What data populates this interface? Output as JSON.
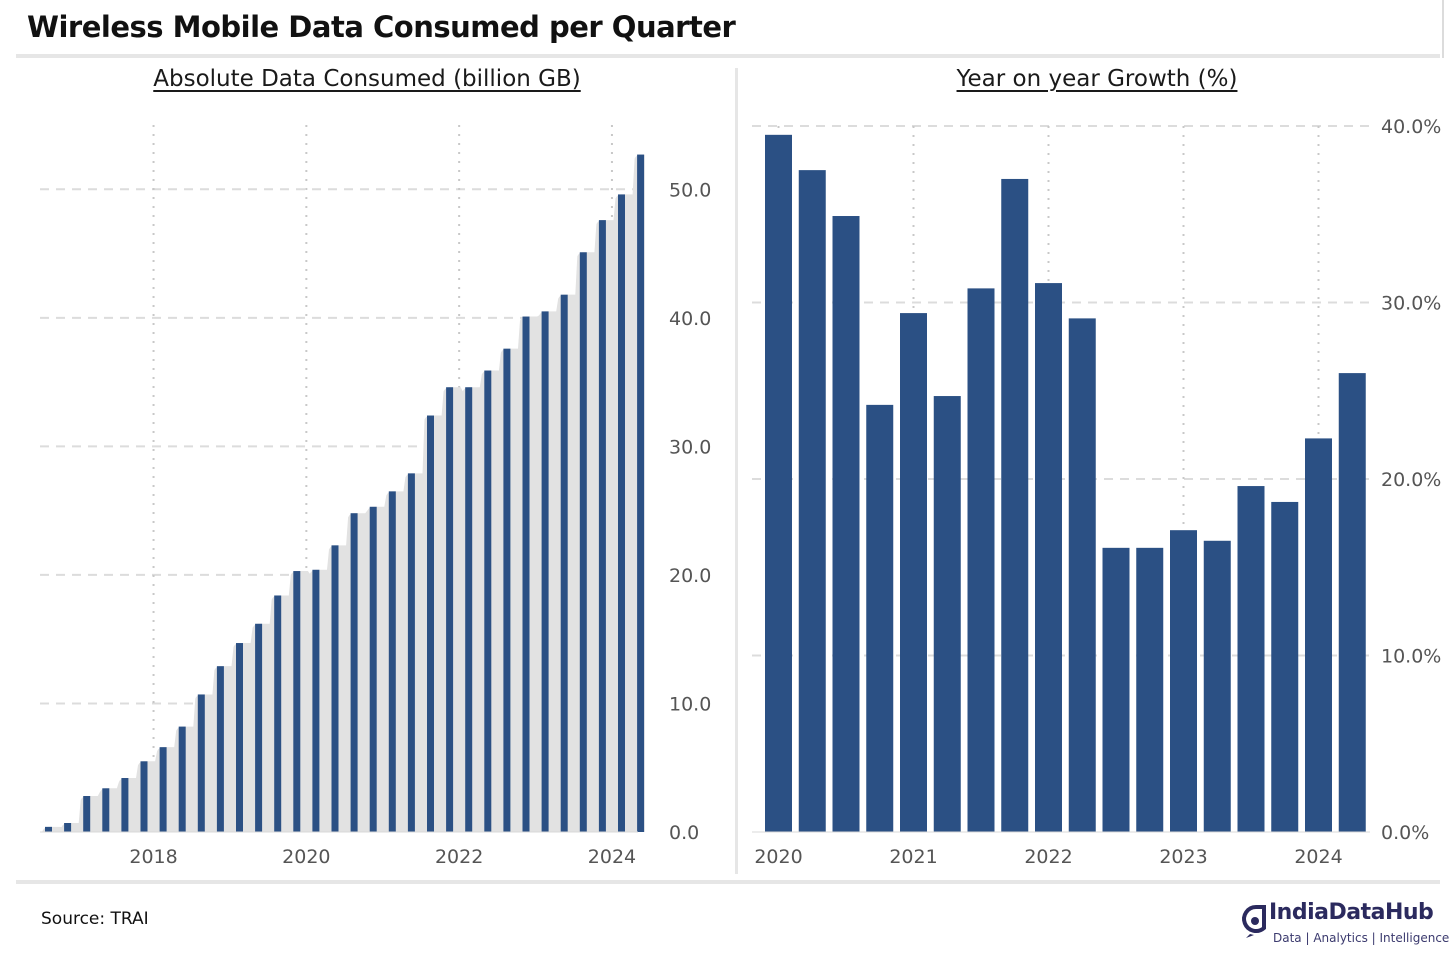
{
  "title": "Wireless Mobile Data Consumed per Quarter",
  "source": "Source: TRAI",
  "logo": {
    "name": "IndiaDataHub",
    "tagline": "Data | Analytics | Intelligence"
  },
  "colors": {
    "bar": "#2b5084",
    "area": "#e2e2e2",
    "grid": "#dcdcdc",
    "frame": "#e6e6e6",
    "logo": "#2b2a5e"
  },
  "chart_data": [
    {
      "type": "bar",
      "title": "Absolute Data Consumed (billion GB)",
      "y_axis_position": "right",
      "ylim": [
        0,
        55
      ],
      "yticks": [
        0,
        10,
        20,
        30,
        40,
        50
      ],
      "ytick_labels": [
        "0.0",
        "10.0",
        "20.0",
        "30.0",
        "40.0",
        "50.0"
      ],
      "xticks": [
        "2018",
        "2020",
        "2022",
        "2024"
      ],
      "grid": true,
      "background_area": true,
      "x": [
        "2016-Q3",
        "2016-Q4",
        "2017-Q1",
        "2017-Q2",
        "2017-Q3",
        "2017-Q4",
        "2018-Q1",
        "2018-Q2",
        "2018-Q3",
        "2018-Q4",
        "2019-Q1",
        "2019-Q2",
        "2019-Q3",
        "2019-Q4",
        "2020-Q1",
        "2020-Q2",
        "2020-Q3",
        "2020-Q4",
        "2021-Q1",
        "2021-Q2",
        "2021-Q3",
        "2021-Q4",
        "2022-Q1",
        "2022-Q2",
        "2022-Q3",
        "2022-Q4",
        "2023-Q1",
        "2023-Q2",
        "2023-Q3",
        "2023-Q4",
        "2024-Q1",
        "2024-Q2"
      ],
      "values": [
        0.4,
        0.7,
        2.8,
        3.4,
        4.2,
        5.5,
        6.6,
        8.2,
        10.7,
        12.9,
        14.7,
        16.2,
        18.4,
        20.3,
        20.4,
        22.3,
        24.8,
        25.3,
        26.5,
        27.9,
        32.4,
        34.6,
        34.6,
        35.9,
        37.6,
        40.1,
        40.5,
        41.8,
        45.1,
        47.6,
        49.6,
        52.7
      ]
    },
    {
      "type": "bar",
      "title": "Year on year Growth (%)",
      "y_axis_position": "right",
      "ylim": [
        0,
        40
      ],
      "yticks": [
        0,
        10,
        20,
        30,
        40
      ],
      "ytick_labels": [
        "0.0%",
        "10.0%",
        "20.0%",
        "30.0%",
        "40.0%"
      ],
      "xticks": [
        "2020",
        "2021",
        "2022",
        "2023",
        "2024"
      ],
      "grid": true,
      "x": [
        "2020-Q1",
        "2020-Q2",
        "2020-Q3",
        "2020-Q4",
        "2021-Q1",
        "2021-Q2",
        "2021-Q3",
        "2021-Q4",
        "2022-Q1",
        "2022-Q2",
        "2022-Q3",
        "2022-Q4",
        "2023-Q1",
        "2023-Q2",
        "2023-Q3",
        "2023-Q4",
        "2024-Q1",
        "2024-Q2"
      ],
      "values": [
        39.5,
        37.5,
        34.9,
        24.2,
        29.4,
        24.7,
        30.8,
        37.0,
        31.1,
        29.1,
        16.1,
        16.1,
        17.1,
        16.5,
        19.6,
        18.7,
        22.3,
        26.0
      ]
    }
  ]
}
